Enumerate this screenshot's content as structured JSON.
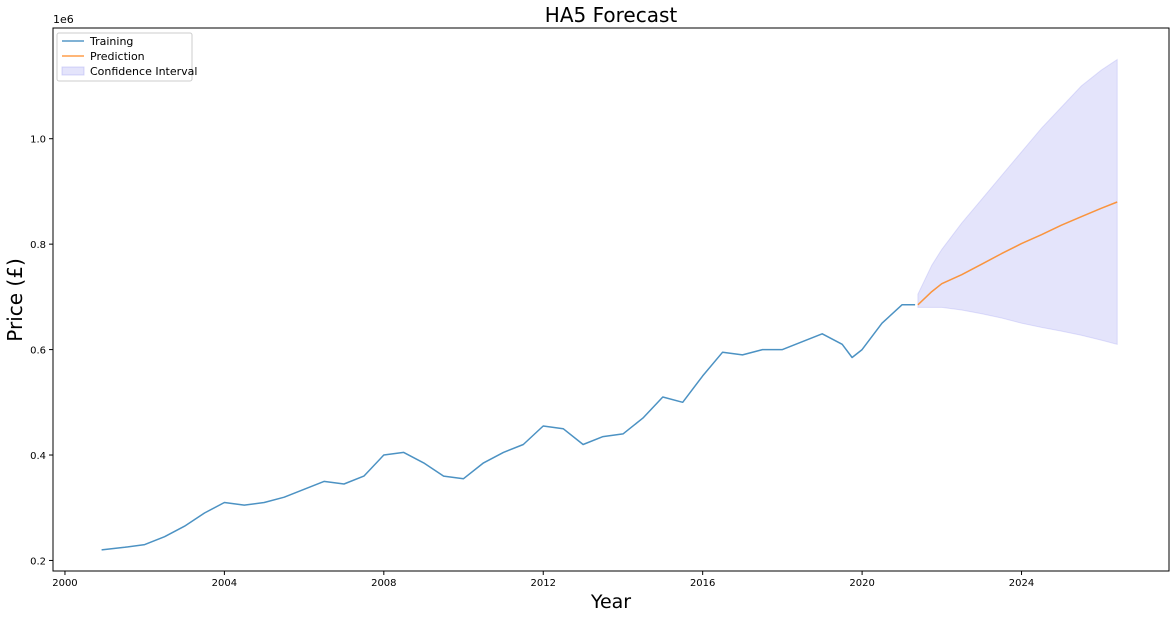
{
  "chart_data": {
    "type": "line",
    "title": "HA5 Forecast",
    "xlabel": "Year",
    "ylabel": "Price (£)",
    "y_offset_label": "1e6",
    "xlim": [
      1999.7,
      2027.7
    ],
    "ylim": [
      0.18,
      1.21
    ],
    "xticks": [
      2000,
      2004,
      2008,
      2012,
      2016,
      2020,
      2024
    ],
    "xtick_labels": [
      "2000",
      "2004",
      "2008",
      "2012",
      "2016",
      "2020",
      "2024"
    ],
    "yticks": [
      0.2,
      0.4,
      0.6,
      0.8,
      1.0
    ],
    "ytick_labels": [
      "0.2",
      "0.4",
      "0.6",
      "0.8",
      "1.0"
    ],
    "grid": false,
    "legend_position": "top-left",
    "legend": [
      "Training",
      "Prediction",
      "Confidence Interval"
    ],
    "colors": {
      "training": "#1f77b4",
      "prediction": "#ff7f0e",
      "ci": "#9f9ff2"
    },
    "series": [
      {
        "name": "Training",
        "x": [
          2000.92,
          2001.5,
          2002.0,
          2002.5,
          2003.0,
          2003.5,
          2004.0,
          2004.5,
          2005.0,
          2005.5,
          2006.0,
          2006.5,
          2007.0,
          2007.5,
          2008.0,
          2008.5,
          2009.0,
          2009.5,
          2010.0,
          2010.5,
          2011.0,
          2011.5,
          2012.0,
          2012.5,
          2013.0,
          2013.5,
          2014.0,
          2014.5,
          2015.0,
          2015.5,
          2016.0,
          2016.5,
          2017.0,
          2017.5,
          2018.0,
          2018.5,
          2019.0,
          2019.5,
          2019.75,
          2020.0,
          2020.5,
          2021.0,
          2021.33
        ],
        "values": [
          0.22,
          0.225,
          0.23,
          0.245,
          0.265,
          0.29,
          0.31,
          0.305,
          0.31,
          0.32,
          0.335,
          0.35,
          0.345,
          0.36,
          0.4,
          0.405,
          0.385,
          0.36,
          0.355,
          0.385,
          0.405,
          0.42,
          0.455,
          0.45,
          0.42,
          0.435,
          0.44,
          0.47,
          0.51,
          0.5,
          0.55,
          0.595,
          0.59,
          0.6,
          0.6,
          0.615,
          0.63,
          0.61,
          0.585,
          0.6,
          0.65,
          0.685,
          0.685
        ]
      },
      {
        "name": "Prediction",
        "x": [
          2021.4,
          2021.75,
          2022.0,
          2022.5,
          2023.0,
          2023.5,
          2024.0,
          2024.5,
          2025.0,
          2025.5,
          2026.0,
          2026.4
        ],
        "values": [
          0.685,
          0.71,
          0.725,
          0.742,
          0.762,
          0.782,
          0.801,
          0.818,
          0.836,
          0.852,
          0.868,
          0.88
        ]
      }
    ],
    "confidence_interval": {
      "name": "Confidence Interval",
      "x": [
        2021.4,
        2021.75,
        2022.0,
        2022.5,
        2023.0,
        2023.5,
        2024.0,
        2024.5,
        2025.0,
        2025.5,
        2026.0,
        2026.4
      ],
      "lower": [
        0.68,
        0.68,
        0.68,
        0.675,
        0.668,
        0.66,
        0.65,
        0.642,
        0.635,
        0.627,
        0.618,
        0.61
      ],
      "upper": [
        0.705,
        0.76,
        0.79,
        0.84,
        0.885,
        0.93,
        0.975,
        1.02,
        1.06,
        1.1,
        1.13,
        1.15
      ]
    }
  }
}
